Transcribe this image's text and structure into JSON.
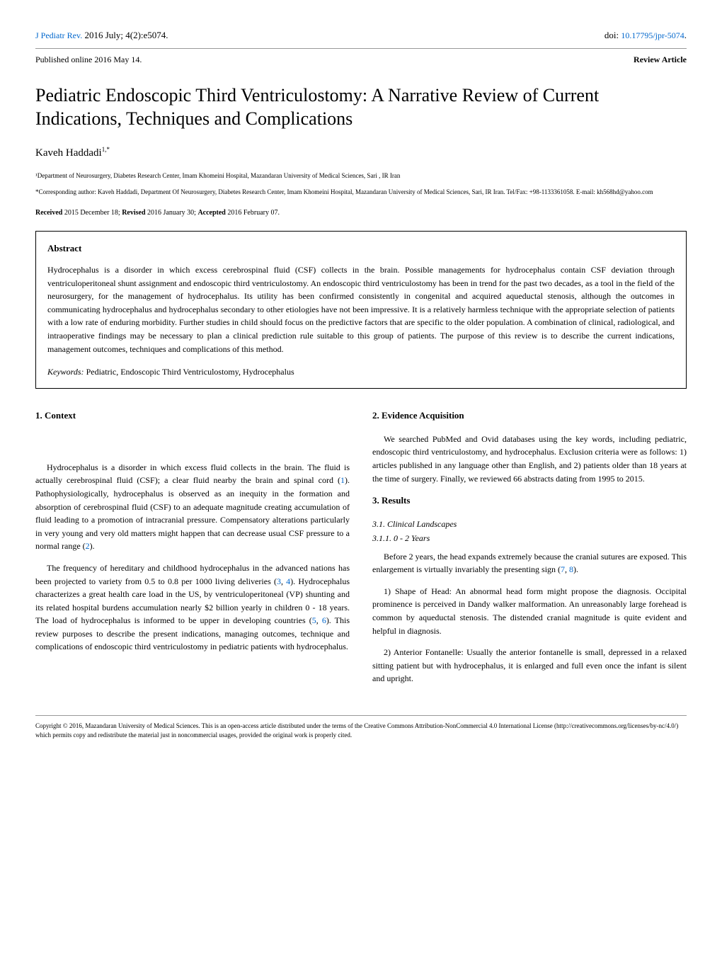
{
  "header": {
    "journal": "J Pediatr Rev.",
    "issue": " 2016 July; 4(2):e5074.",
    "doi_label": "doi: ",
    "doi": "10.17795/jpr-5074",
    "published": "Published online 2016 May 14.",
    "article_type": "Review Article"
  },
  "title": "Pediatric Endoscopic Third Ventriculostomy: A Narrative Review of Current Indications, Techniques and Complications",
  "author": {
    "name": "Kaveh Haddadi",
    "sup": "1,*"
  },
  "affiliation": "¹Department of Neurosurgery, Diabetes Research Center, Imam Khomeini Hospital, Mazandaran University of Medical Sciences, Sari , IR Iran",
  "corresponding": "*Corresponding author: Kaveh Haddadi, Department Of Neurosurgery, Diabetes Research Center, Imam Khomeini Hospital, Mazandaran University of Medical Sciences, Sari, IR Iran. Tel/Fax: +98-1133361058. E-mail: kh568hd@yahoo.com",
  "dates": {
    "received_label": "Received",
    "received": " 2015 December 18; ",
    "revised_label": "Revised",
    "revised": " 2016 January 30; ",
    "accepted_label": "Accepted",
    "accepted": " 2016 February 07."
  },
  "abstract": {
    "heading": "Abstract",
    "text": "Hydrocephalus is a disorder in which excess cerebrospinal fluid (CSF) collects in the brain. Possible managements for hydrocephalus contain CSF deviation through ventriculoperitoneal shunt assignment and endoscopic third ventriculostomy. An endoscopic third ventriculostomy has been in trend for the past two decades, as a tool in the field of the neurosurgery, for the management of hydrocephalus. Its utility has been confirmed consistently in congenital and acquired aqueductal stenosis, although the outcomes in communicating hydrocephalus and hydrocephalus secondary to other etiologies have not been impressive. It is a relatively harmless technique with the appropriate selection of patients with a low rate of enduring morbidity. Further studies in child should focus on the predictive factors that are specific to the older population. A combination of clinical, radiological, and intraoperative findings may be necessary to plan a clinical prediction rule suitable to this group of patients. The purpose of this review is to describe the current indications, management outcomes, techniques and complications of this method.",
    "keywords_label": "Keywords: ",
    "keywords": "Pediatric, Endoscopic Third Ventriculostomy, Hydrocephalus"
  },
  "sections": {
    "context": {
      "heading": "1. Context",
      "p1a": "Hydrocephalus is a disorder in which excess fluid collects in the brain. The fluid is actually cerebrospinal fluid (CSF); a clear fluid nearby the brain and spinal cord (",
      "c1": "1",
      "p1b": "). Pathophysiologically, hydrocephalus is observed as an inequity in the formation and absorption of cerebrospinal fluid (CSF) to an adequate magnitude creating accumulation of fluid leading to a promotion of intracranial pressure. Compensatory alterations particularly in very young and very old matters might happen that can decrease usual CSF pressure to a normal range (",
      "c2": "2",
      "p1c": ").",
      "p2a": "The frequency of hereditary and childhood hydrocephalus in the advanced nations has been projected to variety from 0.5 to 0.8 per 1000 living deliveries (",
      "c3": "3",
      "comma1": ", ",
      "c4": "4",
      "p2b": "). Hydrocephalus characterizes a great health care load in the US, by ventriculoperitoneal (VP) shunting and its related hospital burdens accumulation nearly $2 billion yearly in children 0 - 18 years. The load of hydrocephalus is informed to be upper in developing countries (",
      "c5": "5",
      "comma2": ", ",
      "c6": "6",
      "p2c": "). This review purposes to describe the present indications, managing outcomes, technique and complications of endoscopic third ventriculostomy in pediatric patients with hydrocephalus."
    },
    "evidence": {
      "heading": "2. Evidence Acquisition",
      "p1": "We searched PubMed and Ovid databases using the key words, including pediatric, endoscopic third ventriculostomy, and hydrocephalus. Exclusion criteria were as follows: 1) articles published in any language other than English, and 2) patients older than 18 years at the time of surgery. Finally, we reviewed 66 abstracts dating from 1995 to 2015."
    },
    "results": {
      "heading": "3. Results",
      "sub1": "3.1. Clinical Landscapes",
      "sub2": "3.1.1. 0 - 2 Years",
      "p1a": "Before 2 years, the head expands extremely because the cranial sutures are exposed. This enlargement is virtually invariably the presenting sign (",
      "c7": "7",
      "comma3": ", ",
      "c8": "8",
      "p1b": ").",
      "p2": "1) Shape of Head: An abnormal head form might propose the diagnosis. Occipital prominence is perceived in Dandy walker malformation. An unreasonably large forehead is common by aqueductal stenosis. The distended cranial magnitude is quite evident and helpful in diagnosis.",
      "p3": "2) Anterior Fontanelle: Usually the anterior fontanelle is small, depressed in a relaxed sitting patient but with hydrocephalus, it is enlarged and full even once the infant is silent and upright."
    }
  },
  "footer": "Copyright © 2016, Mazandaran University of Medical Sciences. This is an open-access article distributed under the terms of the Creative Commons Attribution-NonCommercial 4.0 International License (http://creativecommons.org/licenses/by-nc/4.0/) which permits copy and redistribute the material just in noncommercial usages, provided the original work is properly cited."
}
